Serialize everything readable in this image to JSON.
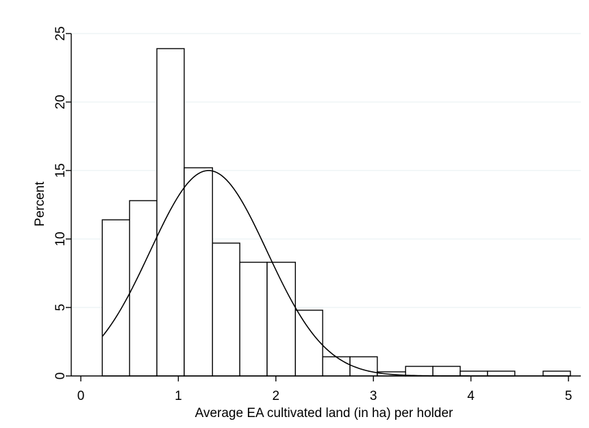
{
  "chart_data": {
    "type": "bar",
    "subtype": "histogram-with-normal-density",
    "title": "",
    "xlabel": "Average EA cultivated land (in ha) per holder",
    "ylabel": "Percent",
    "xlim": [
      0,
      5
    ],
    "ylim": [
      0,
      25
    ],
    "xticks": [
      "0",
      "1",
      "2",
      "3",
      "4",
      "5"
    ],
    "yticks": [
      "0",
      "5",
      "10",
      "15",
      "20",
      "25"
    ],
    "grid": true,
    "legend": "none",
    "bins": [
      {
        "x0": 0.22,
        "x1": 0.5,
        "value": 11.4
      },
      {
        "x0": 0.5,
        "x1": 0.78,
        "value": 12.8
      },
      {
        "x0": 0.78,
        "x1": 1.06,
        "value": 23.9
      },
      {
        "x0": 1.06,
        "x1": 1.35,
        "value": 15.2
      },
      {
        "x0": 1.35,
        "x1": 1.63,
        "value": 9.7
      },
      {
        "x0": 1.63,
        "x1": 1.91,
        "value": 8.3
      },
      {
        "x0": 1.91,
        "x1": 2.2,
        "value": 8.3
      },
      {
        "x0": 2.2,
        "x1": 2.48,
        "value": 4.8
      },
      {
        "x0": 2.48,
        "x1": 2.76,
        "value": 1.4
      },
      {
        "x0": 2.76,
        "x1": 3.04,
        "value": 1.4
      },
      {
        "x0": 3.04,
        "x1": 3.33,
        "value": 0.3
      },
      {
        "x0": 3.33,
        "x1": 3.61,
        "value": 0.7
      },
      {
        "x0": 3.61,
        "x1": 3.89,
        "value": 0.7
      },
      {
        "x0": 3.89,
        "x1": 4.17,
        "value": 0.35
      },
      {
        "x0": 4.17,
        "x1": 4.45,
        "value": 0.35
      },
      {
        "x0": 4.45,
        "x1": 4.74,
        "value": 0
      },
      {
        "x0": 4.74,
        "x1": 5.02,
        "value": 0.35
      }
    ],
    "density_curve": {
      "mean": 1.31,
      "sd": 0.6,
      "peak": 15.0,
      "x_range": [
        0.22,
        5.02
      ]
    },
    "colors": {
      "bar_fill": "#ffffff",
      "bar_stroke": "#000000",
      "grid": "#eaf2f3",
      "axis": "#000000"
    }
  }
}
